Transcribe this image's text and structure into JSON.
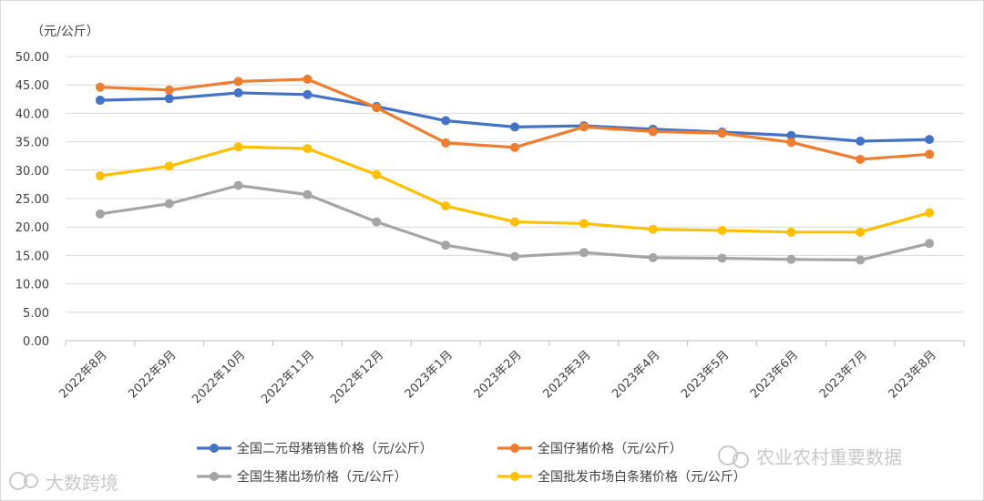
{
  "chart_data": {
    "type": "line",
    "unit_label": "（元/公斤）",
    "categories": [
      "2022年8月",
      "2022年9月",
      "2022年10月",
      "2022年11月",
      "2022年12月",
      "2023年1月",
      "2023年2月",
      "2023年3月",
      "2023年4月",
      "2023年5月",
      "2023年6月",
      "2023年7月",
      "2023年8月"
    ],
    "ylim": [
      0,
      50
    ],
    "yticks": [
      "0.00",
      "5.00",
      "10.00",
      "15.00",
      "20.00",
      "25.00",
      "30.00",
      "35.00",
      "40.00",
      "45.00",
      "50.00"
    ],
    "grid": true,
    "legend_position": "bottom",
    "series": [
      {
        "name": "全国二元母猪销售价格（元/公斤）",
        "color": "#4472c4",
        "values": [
          42.3,
          42.6,
          43.6,
          43.3,
          41.2,
          38.7,
          37.6,
          37.8,
          37.2,
          36.7,
          36.1,
          35.1,
          35.4
        ]
      },
      {
        "name": "全国仔猪价格（元/公斤）",
        "color": "#ed7d31",
        "values": [
          44.6,
          44.1,
          45.6,
          46.0,
          41.0,
          34.8,
          34.0,
          37.6,
          36.8,
          36.5,
          34.9,
          31.9,
          32.8
        ]
      },
      {
        "name": "全国生猪出场价格（元/公斤）",
        "color": "#a5a5a5",
        "values": [
          22.3,
          24.1,
          27.3,
          25.7,
          20.9,
          16.8,
          14.8,
          15.5,
          14.6,
          14.5,
          14.3,
          14.2,
          17.1
        ]
      },
      {
        "name": "全国批发市场白条猪价格（元/公斤）",
        "color": "#ffc000",
        "values": [
          29.0,
          30.7,
          34.1,
          33.8,
          29.2,
          23.7,
          20.9,
          20.6,
          19.6,
          19.4,
          19.1,
          19.1,
          22.5
        ]
      }
    ]
  },
  "watermarks": {
    "top_right": "农业农村重要数据",
    "bottom_left": "大数跨境"
  }
}
